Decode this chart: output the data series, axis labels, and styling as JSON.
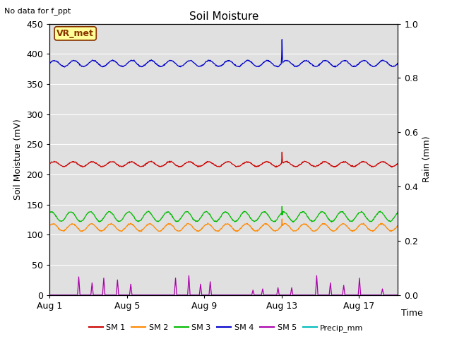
{
  "title": "Soil Moisture",
  "no_data_text": "No data for f_ppt",
  "xlabel": "Time",
  "ylabel_left": "Soil Moisture (mV)",
  "ylabel_right": "Rain (mm)",
  "ylim_left": [
    0,
    450
  ],
  "ylim_right": [
    0.0,
    1.0
  ],
  "xlim": [
    0,
    18
  ],
  "xtick_labels": [
    "Aug 1",
    "Aug 5",
    "Aug 9",
    "Aug 13",
    "Aug 17"
  ],
  "xtick_positions": [
    0,
    4,
    8,
    12,
    16
  ],
  "ytick_left": [
    0,
    50,
    100,
    150,
    200,
    250,
    300,
    350,
    400,
    450
  ],
  "ytick_right": [
    0.0,
    0.2,
    0.4,
    0.6,
    0.8,
    1.0
  ],
  "sm1_base": 217,
  "sm2_base": 112,
  "sm3_base": 130,
  "sm4_base": 384,
  "colors": {
    "SM1": "#cc0000",
    "SM2": "#ff8800",
    "SM3": "#00bb00",
    "SM4": "#0000cc",
    "SM5": "#aa00aa",
    "Precip": "#00bbbb",
    "plot_bg": "#e0e0e0",
    "fig_bg": "#ffffff",
    "grid": "#ffffff",
    "vr_bg": "#ffff99",
    "vr_border": "#883300",
    "vr_text": "#883300"
  },
  "legend_labels": [
    "SM 1",
    "SM 2",
    "SM 3",
    "SM 4",
    "SM 5",
    "Precip_mm"
  ],
  "vr_met_label": "VR_met",
  "figsize": [
    6.4,
    4.8
  ],
  "dpi": 100
}
